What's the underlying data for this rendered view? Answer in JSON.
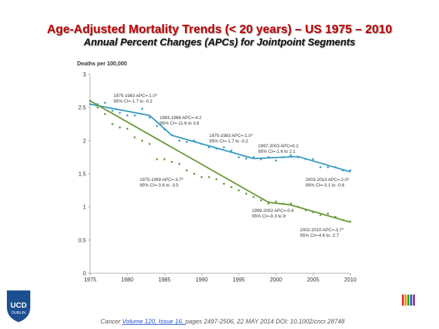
{
  "slide": {
    "title": "Age-Adjusted Mortality Trends (< 20 years) – US 1975 – 2010",
    "subtitle": "Annual Percent Changes (APCs) for Jointpoint Segments",
    "citation": {
      "prefix": "Cancer ",
      "link": "Volume 120, Issue 16, ",
      "suffix": "pages 2497-2506, 22 MAY 2014 DOI: 10.1002/cncr.28748"
    },
    "logo": {
      "line1": "UCD",
      "line2": "DUBLIN"
    }
  },
  "chart_data": {
    "type": "line",
    "ylabel": "Deaths per 100,000",
    "xlim": [
      1975,
      2010
    ],
    "xticks": [
      1975,
      1980,
      1985,
      1990,
      1995,
      2000,
      2005,
      2010
    ],
    "ylim": [
      0,
      3
    ],
    "yticks": [
      0,
      0.5,
      1,
      1.5,
      2,
      2.5,
      3
    ],
    "x": [
      1975,
      1976,
      1977,
      1978,
      1979,
      1980,
      1981,
      1982,
      1983,
      1984,
      1985,
      1986,
      1987,
      1988,
      1989,
      1990,
      1991,
      1992,
      1993,
      1994,
      1995,
      1996,
      1997,
      1998,
      1999,
      2000,
      2001,
      2002,
      2003,
      2004,
      2005,
      2006,
      2007,
      2008,
      2009,
      2010
    ],
    "series": [
      {
        "color": "#3a9cc4",
        "markers": true,
        "values": [
          2.55,
          2.55,
          2.57,
          2.45,
          2.42,
          2.38,
          2.38,
          2.48,
          2.35,
          2.22,
          2.17,
          2.08,
          2.0,
          1.98,
          2.0,
          1.95,
          1.9,
          1.88,
          1.9,
          1.85,
          1.75,
          1.73,
          1.75,
          1.72,
          1.75,
          1.7,
          1.75,
          1.78,
          1.75,
          1.72,
          1.72,
          1.6,
          1.6,
          1.6,
          1.55,
          1.55
        ]
      },
      {
        "color": "#6a9a3a",
        "markers": true,
        "values": [
          2.6,
          2.5,
          2.4,
          2.25,
          2.2,
          2.18,
          2.05,
          2.0,
          1.95,
          1.72,
          1.72,
          1.68,
          1.65,
          1.55,
          1.5,
          1.45,
          1.45,
          1.42,
          1.35,
          1.3,
          1.25,
          1.2,
          1.15,
          1.1,
          1.05,
          1.08,
          1.05,
          1.05,
          1.0,
          0.95,
          0.92,
          0.88,
          0.9,
          0.85,
          0.8,
          0.78
        ]
      },
      {
        "color": "#3a9cc4",
        "markers": false,
        "x": [
          1975,
          1983,
          1986,
          1997,
          2003,
          2010
        ],
        "values": [
          2.55,
          2.38,
          2.08,
          1.73,
          1.76,
          1.53
        ]
      },
      {
        "color": "#6a9a3a",
        "markers": false,
        "x": [
          1975,
          1999,
          2002,
          2010
        ],
        "values": [
          2.6,
          1.07,
          1.03,
          0.77
        ]
      }
    ],
    "annotations": [
      [
        "1975-1983 APC=-1.0*",
        "95% CI=-1.7 to -0.2"
      ],
      [
        "1983-1986 APC=-4.2",
        "95% CI=-11.6 to 3.8"
      ],
      [
        "1975-1983 APC=-1.0*",
        "95% CI=-1.7 to -0.2"
      ],
      [
        "1997-2003 APC=0.2",
        "95% CI=-1.6 to 2.1"
      ],
      [
        "1975-1999 APC=-3.7*",
        "95% CI=-3.8 to -3.5"
      ],
      [
        "2003-2010 APC=-2.0*",
        "95% CI=-3.1 to -0.8"
      ],
      [
        "1999-2002 APC=-0.4",
        "95% CI=-8.3 to 8"
      ],
      [
        "2002-2010 APC=-3.7*",
        "95% CI=-4.6 to -2.7"
      ]
    ]
  }
}
